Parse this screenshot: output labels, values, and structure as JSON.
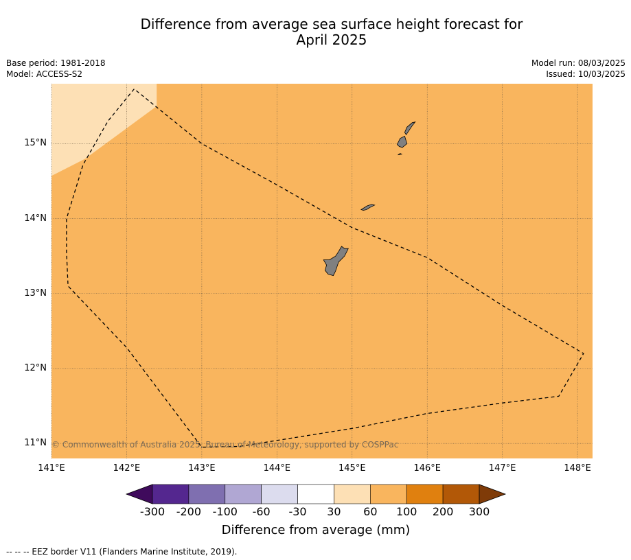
{
  "title": {
    "line1": "Difference from average sea surface height forecast for",
    "line2": "April 2025"
  },
  "meta": {
    "base_period": "Base period: 1981-2018",
    "model": "Model: ACCESS-S2",
    "model_run": "Model run: 08/03/2025",
    "issued": "Issued: 10/03/2025"
  },
  "map": {
    "extent": {
      "lon": [
        141.0,
        148.2
      ],
      "lat": [
        10.8,
        15.8
      ]
    },
    "longitude_labels": [
      {
        "lon": 141,
        "label": "141°E"
      },
      {
        "lon": 142,
        "label": "142°E"
      },
      {
        "lon": 143,
        "label": "143°E"
      },
      {
        "lon": 144,
        "label": "144°E"
      },
      {
        "lon": 145,
        "label": "145°E"
      },
      {
        "lon": 146,
        "label": "146°E"
      },
      {
        "lon": 147,
        "label": "147°E"
      },
      {
        "lon": 148,
        "label": "148°E"
      }
    ],
    "latitude_labels": [
      {
        "lat": 15,
        "label": "15°N"
      },
      {
        "lat": 14,
        "label": "14°N"
      },
      {
        "lat": 13,
        "label": "13°N"
      },
      {
        "lat": 12,
        "label": "12°N"
      },
      {
        "lat": 11,
        "label": "11°N"
      }
    ],
    "background_class_color": "#f9b55e",
    "light_region_color": "#fde0b5",
    "light_region_polygon": [
      [
        141.0,
        15.8
      ],
      [
        142.4,
        15.8
      ],
      [
        142.4,
        15.5
      ],
      [
        141.45,
        14.8
      ],
      [
        141.0,
        14.57
      ]
    ],
    "land_color": "#808080",
    "islands": [
      [
        [
          144.62,
          13.45
        ],
        [
          144.7,
          13.45
        ],
        [
          144.78,
          13.5
        ],
        [
          144.82,
          13.56
        ],
        [
          144.86,
          13.63
        ],
        [
          144.9,
          13.6
        ],
        [
          144.95,
          13.6
        ],
        [
          144.9,
          13.5
        ],
        [
          144.82,
          13.42
        ],
        [
          144.78,
          13.3
        ],
        [
          144.75,
          13.24
        ],
        [
          144.68,
          13.26
        ],
        [
          144.64,
          13.31
        ],
        [
          144.66,
          13.38
        ]
      ],
      [
        [
          145.12,
          14.12
        ],
        [
          145.2,
          14.17
        ],
        [
          145.26,
          14.19
        ],
        [
          145.3,
          14.18
        ],
        [
          145.24,
          14.15
        ],
        [
          145.19,
          14.12
        ],
        [
          145.15,
          14.11
        ]
      ],
      [
        [
          145.6,
          14.99
        ],
        [
          145.64,
          15.07
        ],
        [
          145.7,
          15.1
        ],
        [
          145.73,
          15.0
        ],
        [
          145.67,
          14.95
        ],
        [
          145.63,
          14.96
        ]
      ],
      [
        [
          145.61,
          14.85
        ],
        [
          145.64,
          14.87
        ],
        [
          145.66,
          14.86
        ]
      ],
      [
        [
          145.7,
          15.15
        ],
        [
          145.73,
          15.22
        ],
        [
          145.8,
          15.28
        ],
        [
          145.84,
          15.29
        ],
        [
          145.8,
          15.24
        ],
        [
          145.76,
          15.18
        ],
        [
          145.72,
          15.12
        ]
      ]
    ],
    "eez_border": [
      [
        142.1,
        15.73
      ],
      [
        141.75,
        15.3
      ],
      [
        141.42,
        14.72
      ],
      [
        141.2,
        14.0
      ],
      [
        141.2,
        13.55
      ],
      [
        141.22,
        13.1
      ],
      [
        142.0,
        12.28
      ],
      [
        143.0,
        10.95
      ],
      [
        143.5,
        10.96
      ],
      [
        145.0,
        11.2
      ],
      [
        146.0,
        11.4
      ],
      [
        147.0,
        11.54
      ],
      [
        147.75,
        11.63
      ],
      [
        148.08,
        12.2
      ],
      [
        147.0,
        12.84
      ],
      [
        146.0,
        13.48
      ],
      [
        145.0,
        13.88
      ],
      [
        144.0,
        14.45
      ],
      [
        143.0,
        15.0
      ],
      [
        142.1,
        15.73
      ]
    ],
    "copyright": "© Commonwealth of Australia 2025, Bureau of Meteorology, supported by COSPPac"
  },
  "colorbar": {
    "title": "Difference from average (mm)",
    "ticks": [
      "-300",
      "-200",
      "-100",
      "-60",
      "-30",
      "30",
      "60",
      "100",
      "200",
      "300"
    ],
    "colors": [
      "#3f0a5c",
      "#54278f",
      "#7f6fb0",
      "#b0a7d3",
      "#dcdcee",
      "#ffffff",
      "#fde0b5",
      "#f9b55e",
      "#e0800f",
      "#b25807",
      "#7f3b08"
    ]
  },
  "legend": {
    "eez_line": "--  --  -- EEZ border V11 (Flanders Marine Institute, 2019)."
  }
}
